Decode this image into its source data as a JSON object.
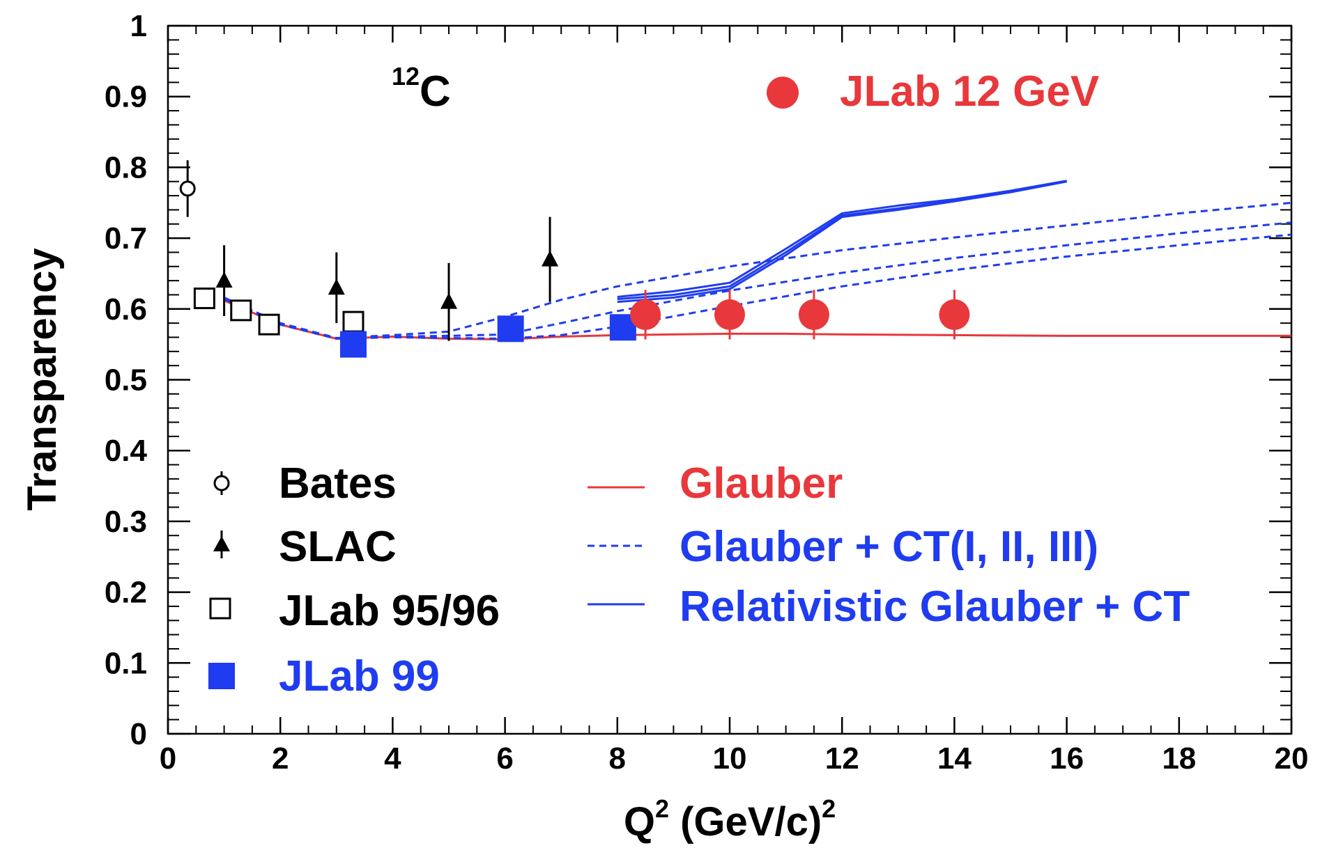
{
  "chart_data": {
    "type": "scatter",
    "title": "",
    "annotation": {
      "superscript": "12",
      "text": "C"
    },
    "xlabel": {
      "main": "Q",
      "sup1": "2",
      "middle": " (GeV/c)",
      "sup2": "2"
    },
    "ylabel": "Transparency",
    "xlim": [
      0,
      20
    ],
    "ylim": [
      0,
      1
    ],
    "xticks": [
      "0",
      "2",
      "4",
      "6",
      "8",
      "10",
      "12",
      "14",
      "16",
      "18",
      "20"
    ],
    "yticks": [
      "0",
      "0.1",
      "0.2",
      "0.3",
      "0.4",
      "0.5",
      "0.6",
      "0.7",
      "0.8",
      "0.9",
      "1"
    ],
    "grid": false,
    "colors": {
      "red": "#e8383b",
      "blue": "#1f3cf0",
      "black": "#000000"
    },
    "data_series": [
      {
        "name": "Bates",
        "marker": "open-circle",
        "color": "#000000",
        "points": [
          {
            "x": 0.35,
            "y": 0.77,
            "err": 0.04
          }
        ]
      },
      {
        "name": "SLAC",
        "marker": "filled-triangle",
        "color": "#000000",
        "points": [
          {
            "x": 1.0,
            "y": 0.64,
            "err": 0.05
          },
          {
            "x": 3.0,
            "y": 0.63,
            "err": 0.05
          },
          {
            "x": 5.0,
            "y": 0.61,
            "err": 0.055
          },
          {
            "x": 6.8,
            "y": 0.67,
            "err": 0.06
          }
        ]
      },
      {
        "name": "JLab 95/96",
        "marker": "open-square",
        "color": "#000000",
        "points": [
          {
            "x": 0.65,
            "y": 0.615,
            "err": 0.01
          },
          {
            "x": 1.3,
            "y": 0.598,
            "err": 0.01
          },
          {
            "x": 1.8,
            "y": 0.578,
            "err": 0.01
          },
          {
            "x": 3.3,
            "y": 0.582,
            "err": 0.01
          }
        ]
      },
      {
        "name": "JLab 99",
        "marker": "filled-square",
        "color": "#1f3cf0",
        "points": [
          {
            "x": 3.3,
            "y": 0.55,
            "err": 0.01
          },
          {
            "x": 6.1,
            "y": 0.572,
            "err": 0.01
          },
          {
            "x": 8.1,
            "y": 0.574,
            "err": 0.01
          }
        ]
      },
      {
        "name": "JLab 12 GeV",
        "marker": "filled-circle",
        "color": "#e8383b",
        "points": [
          {
            "x": 8.5,
            "y": 0.592,
            "err": 0.035
          },
          {
            "x": 10.0,
            "y": 0.592,
            "err": 0.035
          },
          {
            "x": 11.5,
            "y": 0.592,
            "err": 0.035
          },
          {
            "x": 14.0,
            "y": 0.592,
            "err": 0.035
          }
        ]
      }
    ],
    "curves": [
      {
        "name": "Glauber",
        "style": "solid",
        "color": "#e8383b",
        "x": [
          1,
          2,
          3,
          4,
          5,
          6,
          7,
          8,
          9,
          10,
          11,
          12,
          14,
          16,
          18,
          20
        ],
        "y": [
          0.612,
          0.578,
          0.558,
          0.561,
          0.558,
          0.557,
          0.561,
          0.563,
          0.564,
          0.565,
          0.565,
          0.564,
          0.563,
          0.562,
          0.562,
          0.562
        ]
      },
      {
        "name": "Glauber + CT(I)",
        "style": "dashed",
        "color": "#1f3cf0",
        "x": [
          1,
          2,
          3,
          4,
          5,
          6,
          7,
          8,
          10,
          12,
          14,
          16,
          18,
          20
        ],
        "y": [
          0.616,
          0.58,
          0.559,
          0.563,
          0.568,
          0.589,
          0.613,
          0.632,
          0.66,
          0.683,
          0.701,
          0.718,
          0.735,
          0.75
        ]
      },
      {
        "name": "Glauber + CT(II)",
        "style": "dashed",
        "color": "#1f3cf0",
        "x": [
          1,
          2,
          3,
          4,
          5,
          6,
          7,
          8,
          10,
          12,
          14,
          16,
          18,
          20
        ],
        "y": [
          0.615,
          0.579,
          0.558,
          0.561,
          0.562,
          0.564,
          0.58,
          0.597,
          0.626,
          0.651,
          0.672,
          0.69,
          0.707,
          0.722
        ]
      },
      {
        "name": "Glauber + CT(III)",
        "style": "dashed",
        "color": "#1f3cf0",
        "x": [
          1,
          2,
          3,
          4,
          5,
          6,
          7,
          8,
          10,
          12,
          14,
          16,
          18,
          20
        ],
        "y": [
          0.614,
          0.578,
          0.558,
          0.56,
          0.559,
          0.558,
          0.563,
          0.575,
          0.604,
          0.632,
          0.655,
          0.674,
          0.69,
          0.705
        ]
      },
      {
        "name": "Relativistic Glauber + CT (a)",
        "style": "solid",
        "color": "#1f3cf0",
        "x": [
          8,
          9,
          10,
          11,
          12,
          13,
          14,
          15,
          16
        ],
        "y": [
          0.617,
          0.625,
          0.637,
          0.685,
          0.735,
          0.746,
          0.755,
          0.767,
          0.781
        ]
      },
      {
        "name": "Relativistic Glauber + CT (b)",
        "style": "solid",
        "color": "#1f3cf0",
        "x": [
          8,
          9,
          10,
          11,
          12,
          13,
          14,
          15,
          16
        ],
        "y": [
          0.614,
          0.62,
          0.632,
          0.68,
          0.732,
          0.742,
          0.753,
          0.765,
          0.78
        ]
      },
      {
        "name": "Relativistic Glauber + CT (c)",
        "style": "solid",
        "color": "#1f3cf0",
        "x": [
          8,
          9,
          10,
          11,
          12,
          13,
          14,
          15,
          16
        ],
        "y": [
          0.61,
          0.616,
          0.628,
          0.676,
          0.73,
          0.74,
          0.752,
          0.765,
          0.78
        ]
      }
    ],
    "legend_left": [
      {
        "marker": "open-circle",
        "label": "Bates",
        "color": "#000000"
      },
      {
        "marker": "filled-triangle",
        "label": "SLAC",
        "color": "#000000"
      },
      {
        "marker": "open-square",
        "label": "JLab 95/96",
        "color": "#000000"
      },
      {
        "marker": "filled-square",
        "label": "JLab 99",
        "color": "#1f3cf0"
      }
    ],
    "legend_right": [
      {
        "line": "solid",
        "label": "Glauber",
        "color": "#e8383b"
      },
      {
        "line": "dashed",
        "label": "Glauber + CT(I, II, III)",
        "color": "#1f3cf0"
      },
      {
        "line": "solid",
        "label": "Relativistic Glauber + CT",
        "color": "#1f3cf0"
      }
    ],
    "legend_top": {
      "marker": "filled-circle",
      "label": "JLab 12 GeV",
      "color": "#e8383b"
    }
  }
}
